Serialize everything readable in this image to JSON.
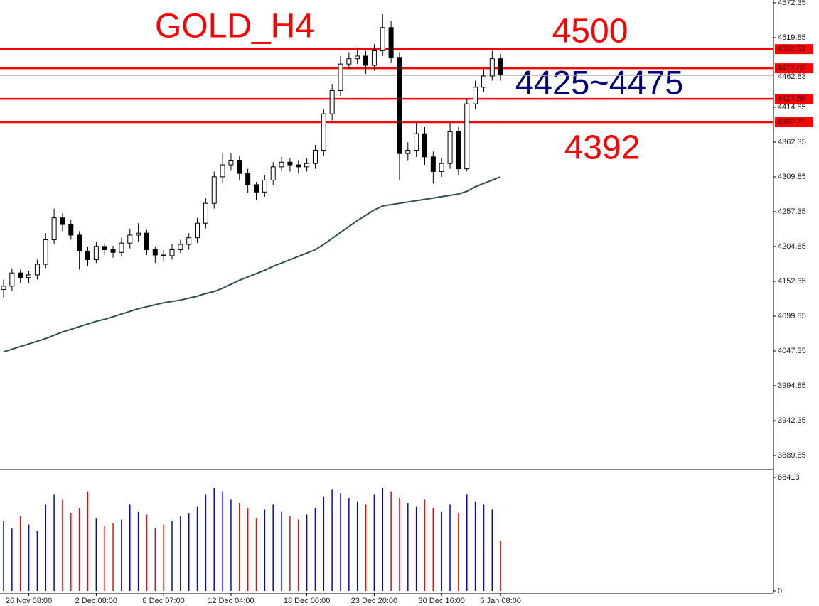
{
  "chart_data": {
    "type": "candlestick",
    "title": "GOLD_H4",
    "annotations": [
      {
        "text": "4500",
        "color": "#ff0000"
      },
      {
        "text": "4425~4475",
        "color": "#000080"
      },
      {
        "text": "4392",
        "color": "#ff0000"
      }
    ],
    "categories": [
      null,
      null,
      null,
      "26 Nov 08:00",
      null,
      null,
      null,
      null,
      null,
      null,
      null,
      "2 Dec 08:00",
      null,
      null,
      null,
      null,
      null,
      null,
      null,
      "8 Dec 07:00",
      null,
      null,
      null,
      null,
      null,
      null,
      null,
      "12 Dec 04:00",
      null,
      null,
      null,
      null,
      null,
      null,
      null,
      null,
      "18 Dec 00:00",
      null,
      null,
      null,
      null,
      null,
      null,
      null,
      "23 Dec 20:00",
      null,
      null,
      null,
      null,
      null,
      null,
      null,
      "30 Dec 16:00",
      null,
      null,
      null,
      null,
      null,
      null,
      "6 Jan 08:00"
    ],
    "open": [
      4140,
      4145,
      4165,
      4158,
      4162,
      4178,
      4215,
      4248,
      4238,
      4222,
      4198,
      4185,
      4205,
      4200,
      4196,
      4210,
      4222,
      4225,
      4200,
      4192,
      4191,
      4200,
      4208,
      4218,
      4240,
      4270,
      4310,
      4328,
      4335,
      4315,
      4298,
      4287,
      4305,
      4325,
      4332,
      4328,
      4325,
      4330,
      4350,
      4405,
      4440,
      4480,
      4488,
      4492,
      4478,
      4500,
      4535,
      4490,
      4345,
      4350,
      4375,
      4340,
      4318,
      4330,
      4378,
      4322,
      4420,
      4445,
      4462,
      4488
    ],
    "high": [
      4155,
      4172,
      4170,
      4168,
      4185,
      4225,
      4262,
      4255,
      4245,
      4228,
      4205,
      4212,
      4210,
      4206,
      4218,
      4232,
      4240,
      4230,
      4205,
      4200,
      4208,
      4215,
      4225,
      4248,
      4278,
      4318,
      4345,
      4345,
      4342,
      4322,
      4302,
      4312,
      4332,
      4340,
      4338,
      4335,
      4338,
      4358,
      4412,
      4450,
      4492,
      4498,
      4505,
      4500,
      4510,
      4555,
      4545,
      4498,
      4362,
      4392,
      4385,
      4348,
      4338,
      4392,
      4385,
      4428,
      4455,
      4472,
      4500,
      4495
    ],
    "low": [
      4128,
      4138,
      4150,
      4150,
      4155,
      4172,
      4208,
      4228,
      4215,
      4170,
      4175,
      4180,
      4192,
      4188,
      4190,
      4202,
      4212,
      4192,
      4180,
      4182,
      4185,
      4195,
      4200,
      4210,
      4232,
      4262,
      4300,
      4320,
      4305,
      4285,
      4275,
      4280,
      4298,
      4318,
      4318,
      4315,
      4318,
      4322,
      4342,
      4395,
      4432,
      4472,
      4480,
      4465,
      4470,
      4492,
      4482,
      4305,
      4335,
      4340,
      4328,
      4300,
      4310,
      4322,
      4312,
      4318,
      4412,
      4438,
      4455,
      4455
    ],
    "close": [
      4145,
      4165,
      4158,
      4162,
      4178,
      4215,
      4248,
      4238,
      4222,
      4198,
      4185,
      4205,
      4200,
      4196,
      4210,
      4222,
      4225,
      4200,
      4192,
      4191,
      4200,
      4208,
      4218,
      4240,
      4270,
      4310,
      4328,
      4335,
      4315,
      4298,
      4287,
      4305,
      4325,
      4332,
      4328,
      4325,
      4330,
      4350,
      4405,
      4440,
      4480,
      4488,
      4492,
      4478,
      4500,
      4535,
      4490,
      4345,
      4350,
      4375,
      4340,
      4318,
      4330,
      4378,
      4322,
      4420,
      4445,
      4462,
      4488,
      4464
    ],
    "ma": {
      "color": "#2f4f4f",
      "values": [
        4046,
        4050,
        4054,
        4058,
        4062,
        4066,
        4071,
        4076,
        4080,
        4084,
        4088,
        4092,
        4095,
        4099,
        4103,
        4107,
        4111,
        4114,
        4117,
        4120,
        4122,
        4124,
        4127,
        4130,
        4134,
        4137,
        4142,
        4148,
        4154,
        4159,
        4164,
        4169,
        4175,
        4180,
        4185,
        4190,
        4195,
        4200,
        4208,
        4217,
        4226,
        4235,
        4244,
        4252,
        4260,
        4266,
        4268,
        4270,
        4272,
        4274,
        4276,
        4278,
        4280,
        4282,
        4284,
        4288,
        4295,
        4300,
        4305,
        4310
      ]
    },
    "ylim": [
      3869.5,
      4576.6
    ],
    "yticks": [
      4572.35,
      4519.85,
      4414.85,
      4362.35,
      4309.85,
      4257.35,
      4204.85,
      4152.35,
      4099.85,
      4047.35,
      3994.85,
      3942.35,
      3889.85
    ],
    "levels": [
      {
        "value": 4502.52,
        "color": "#ff0000"
      },
      {
        "value": 4473.62,
        "color": "#ff0000"
      },
      {
        "value": 4427.59,
        "color": "#ff0000"
      },
      {
        "value": 4392.27,
        "color": "#ff0000"
      }
    ],
    "current_price": 4462.83,
    "volume": {
      "values": [
        42000,
        38000,
        45000,
        40000,
        36000,
        52000,
        58000,
        55000,
        47000,
        50000,
        60000,
        44000,
        39000,
        41000,
        43000,
        52000,
        48000,
        46000,
        38000,
        40000,
        42000,
        45000,
        47000,
        51000,
        58000,
        62000,
        60000,
        55000,
        53000,
        50000,
        44000,
        49000,
        52000,
        48000,
        45000,
        43000,
        46000,
        50000,
        57000,
        61000,
        59000,
        56000,
        54000,
        52000,
        58000,
        62000,
        60000,
        56000,
        53000,
        51000,
        55000,
        50000,
        48000,
        52000,
        47000,
        58000,
        54000,
        52000,
        49000,
        30000
      ],
      "up_color": "#0000ff",
      "down_color": "#ff0000"
    },
    "y2lim": [
      0,
      68413
    ],
    "y2ticks": [
      0,
      68413
    ]
  }
}
